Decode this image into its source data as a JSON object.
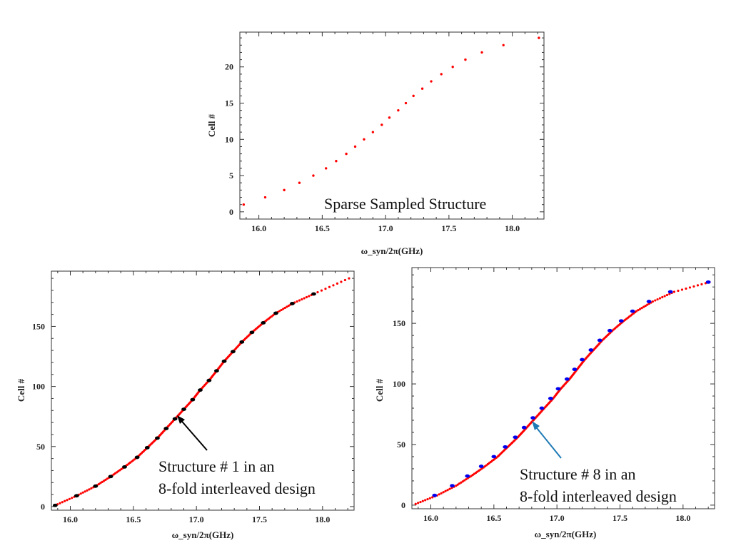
{
  "chart_data": [
    {
      "type": "scatter",
      "xlabel": "ω_syn/2π(GHz)",
      "ylabel": "Cell #",
      "xlim": [
        15.85,
        18.25
      ],
      "ylim": [
        -1,
        24.8
      ],
      "xticks": [
        16.0,
        16.5,
        17.0,
        17.5,
        18.0
      ],
      "yticks": [
        0,
        5,
        10,
        15,
        20
      ],
      "annotation": "Sparse Sampled Structure",
      "series": [
        {
          "color": "#ff0000",
          "x": [
            15.88,
            16.05,
            16.2,
            16.32,
            16.43,
            16.53,
            16.61,
            16.69,
            16.76,
            16.83,
            16.9,
            16.97,
            17.03,
            17.1,
            17.16,
            17.22,
            17.29,
            17.36,
            17.44,
            17.53,
            17.63,
            17.76,
            17.93,
            18.21
          ],
          "y": [
            1,
            2,
            3,
            4,
            5,
            6,
            7,
            8,
            9,
            10,
            11,
            12,
            13,
            14,
            15,
            16,
            17,
            18,
            19,
            20,
            21,
            22,
            23,
            24
          ]
        }
      ]
    },
    {
      "type": "scatter",
      "xlabel": "ω_syn/2π(GHz)",
      "ylabel": "Cell #",
      "xlim": [
        15.85,
        18.25
      ],
      "ylim": [
        -3,
        196
      ],
      "xticks": [
        16.0,
        16.5,
        17.0,
        17.5,
        18.0
      ],
      "yticks": [
        0,
        50,
        100,
        150
      ],
      "annotation": [
        "Structure # 1 in an",
        "8-fold interleaved design"
      ],
      "arrow_color": "#000000",
      "series": [
        {
          "color": "#ff0000",
          "curve": true,
          "x": [
            15.88,
            16.05,
            16.2,
            16.32,
            16.43,
            16.53,
            16.61,
            16.69,
            16.76,
            16.83,
            16.9,
            16.97,
            17.03,
            17.1,
            17.16,
            17.22,
            17.29,
            17.36,
            17.44,
            17.53,
            17.63,
            17.76,
            17.93,
            18.21
          ],
          "y": [
            1,
            9,
            17,
            25,
            33,
            41,
            49,
            57,
            65,
            73,
            81,
            89,
            97,
            105,
            113,
            121,
            129,
            137,
            145,
            153,
            161,
            169,
            177,
            190
          ]
        },
        {
          "color": "#000000",
          "x": [
            15.88,
            16.05,
            16.2,
            16.32,
            16.43,
            16.53,
            16.61,
            16.69,
            16.76,
            16.83,
            16.9,
            16.97,
            17.03,
            17.1,
            17.16,
            17.22,
            17.29,
            17.36,
            17.44,
            17.53,
            17.63,
            17.76,
            17.93
          ],
          "y": [
            1,
            9,
            17,
            25,
            33,
            41,
            49,
            57,
            65,
            73,
            81,
            89,
            97,
            105,
            113,
            121,
            129,
            137,
            145,
            153,
            161,
            169,
            177
          ]
        }
      ]
    },
    {
      "type": "scatter",
      "xlabel": "ω_syn/2π(GHz)",
      "ylabel": "Cell #",
      "xlim": [
        15.85,
        18.25
      ],
      "ylim": [
        -3,
        196
      ],
      "xticks": [
        16.0,
        16.5,
        17.0,
        17.5,
        18.0
      ],
      "yticks": [
        0,
        50,
        100,
        150
      ],
      "annotation": [
        "Structure # 8 in an",
        "8-fold interleaved design"
      ],
      "arrow_color": "#1f7ab5",
      "series": [
        {
          "color": "#ff0000",
          "curve": true,
          "x": [
            15.88,
            16.05,
            16.2,
            16.32,
            16.43,
            16.53,
            16.61,
            16.69,
            16.76,
            16.83,
            16.9,
            16.97,
            17.03,
            17.1,
            17.16,
            17.22,
            17.29,
            17.36,
            17.44,
            17.53,
            17.63,
            17.76,
            17.93,
            18.21
          ],
          "y": [
            1,
            8,
            16,
            24,
            32,
            40,
            48,
            56,
            64,
            72,
            80,
            88,
            96,
            104,
            112,
            120,
            128,
            136,
            144,
            152,
            160,
            168,
            176,
            184
          ]
        },
        {
          "color": "#0000ee",
          "x": [
            16.03,
            16.17,
            16.29,
            16.4,
            16.5,
            16.59,
            16.67,
            16.74,
            16.81,
            16.88,
            16.95,
            17.01,
            17.08,
            17.14,
            17.2,
            17.27,
            17.34,
            17.42,
            17.51,
            17.6,
            17.73,
            17.9,
            18.2
          ],
          "y": [
            8,
            16,
            24,
            32,
            40,
            48,
            56,
            64,
            72,
            80,
            88,
            96,
            104,
            112,
            120,
            128,
            136,
            144,
            152,
            160,
            168,
            176,
            184
          ]
        }
      ]
    }
  ]
}
